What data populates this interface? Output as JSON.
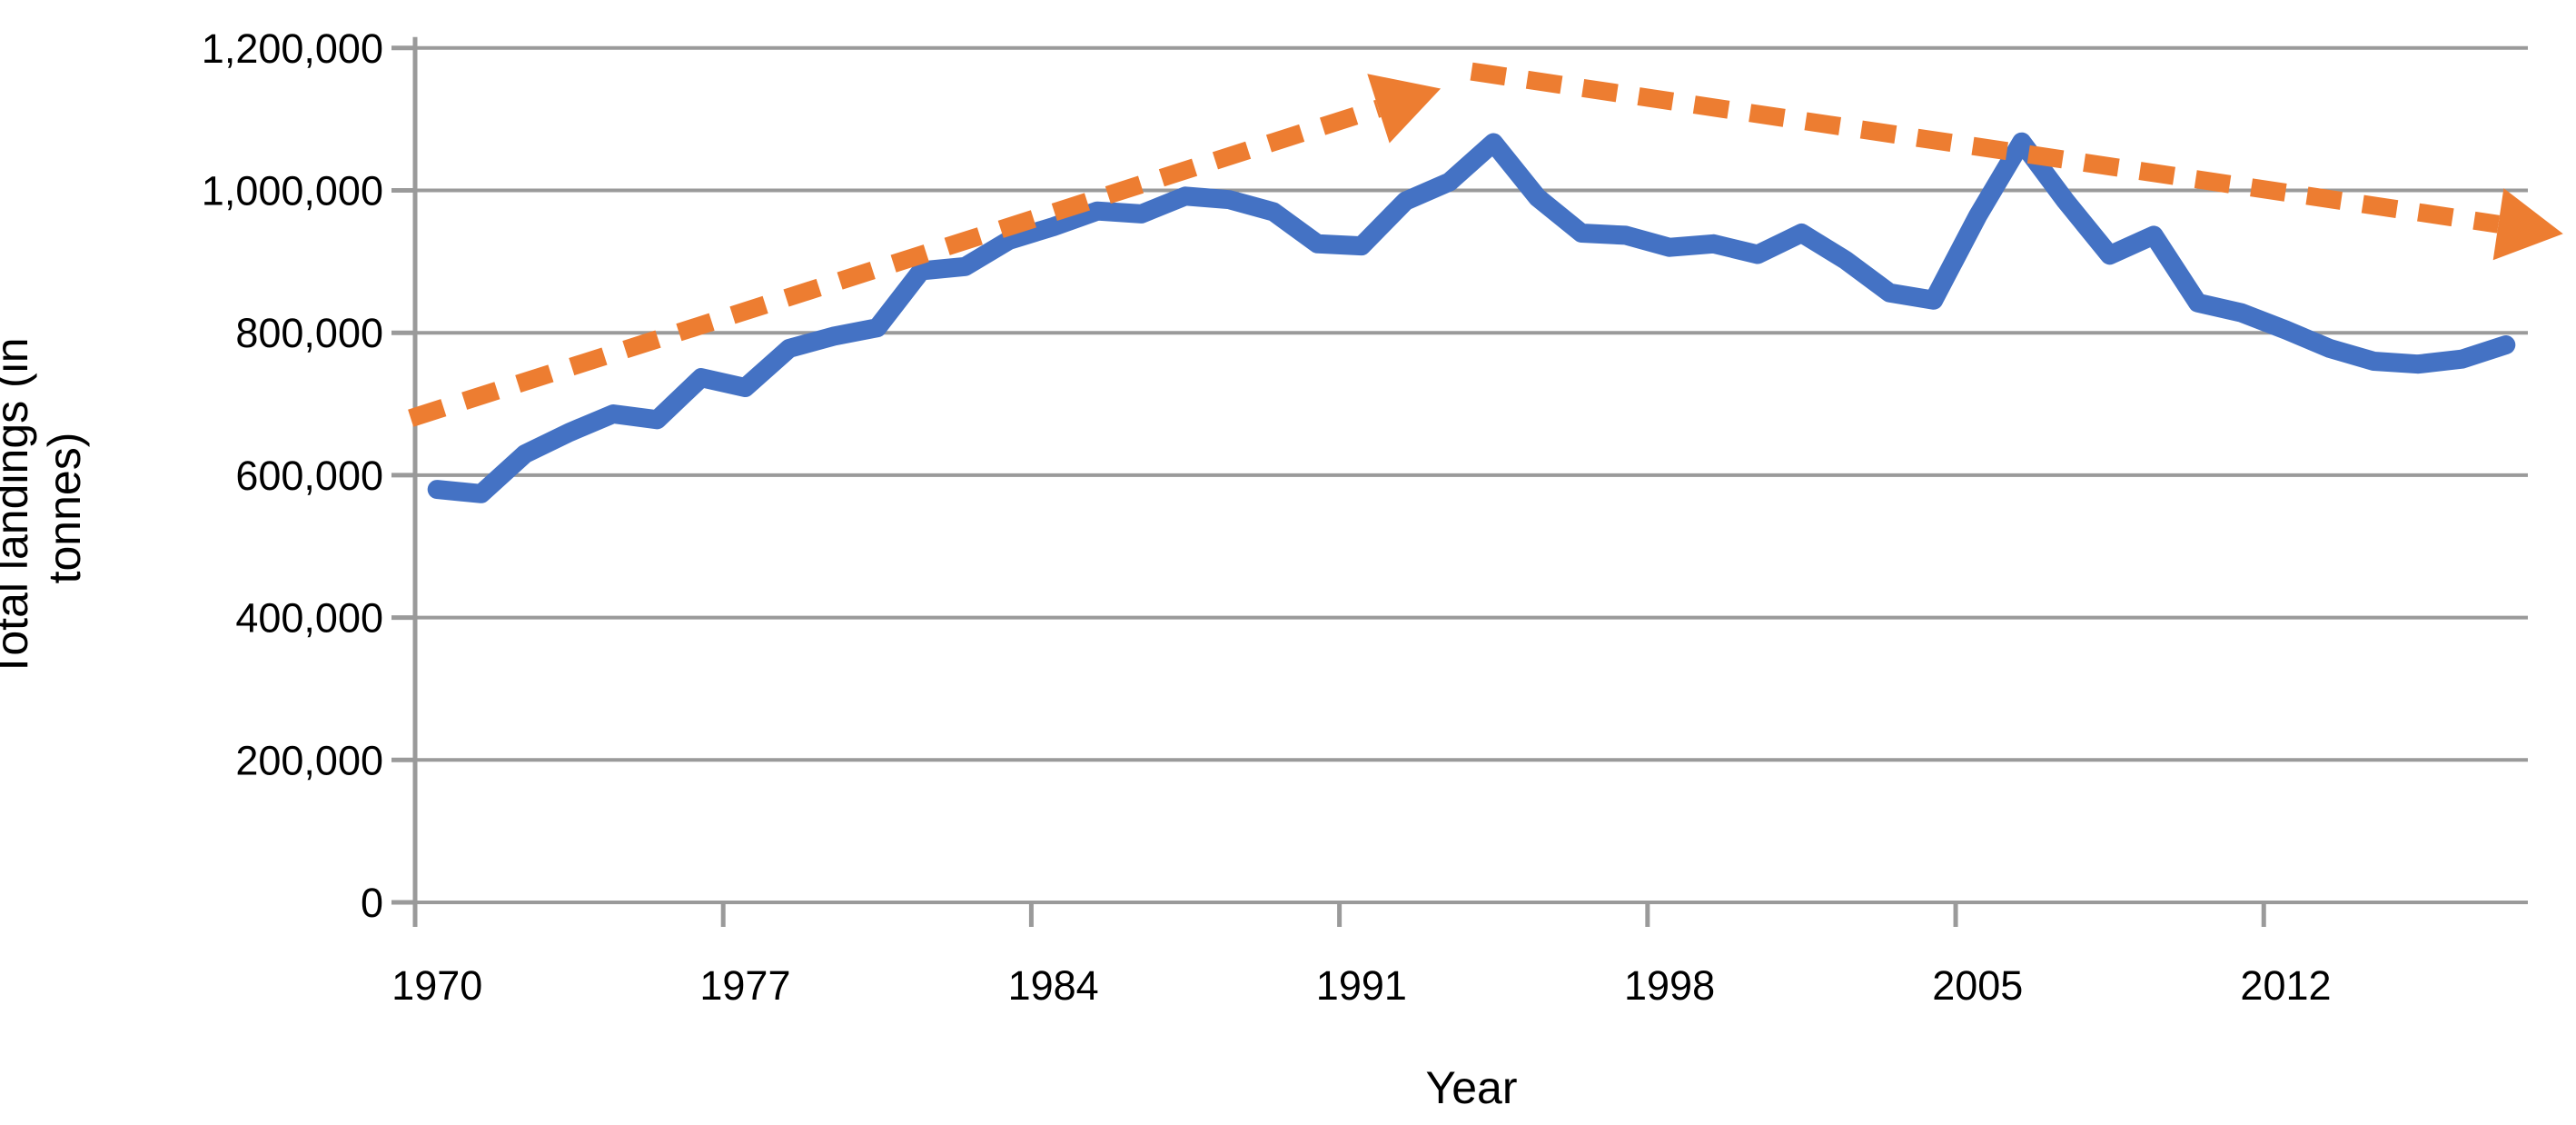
{
  "chart_data": {
    "type": "line",
    "title": "",
    "xlabel": "Year",
    "ylabel": "Total landings (in tonnes)",
    "x": [
      1970,
      1971,
      1972,
      1973,
      1974,
      1975,
      1976,
      1977,
      1978,
      1979,
      1980,
      1981,
      1982,
      1983,
      1984,
      1985,
      1986,
      1987,
      1988,
      1989,
      1990,
      1991,
      1992,
      1993,
      1994,
      1995,
      1996,
      1997,
      1998,
      1999,
      2000,
      2001,
      2002,
      2003,
      2004,
      2005,
      2006,
      2007,
      2008,
      2009,
      2010,
      2011,
      2012,
      2013,
      2014,
      2015,
      2016,
      2017
    ],
    "series": [
      {
        "name": "Total landings",
        "values": [
          580000,
          574000,
          630000,
          660000,
          686000,
          678000,
          737000,
          723000,
          778000,
          795000,
          807000,
          887000,
          893000,
          930000,
          949000,
          971000,
          967000,
          992000,
          987000,
          970000,
          925000,
          922000,
          985000,
          1012000,
          1067000,
          990000,
          940000,
          937000,
          920000,
          925000,
          910000,
          940000,
          902000,
          856000,
          846000,
          964000,
          1068000,
          985000,
          909000,
          937000,
          842000,
          828000,
          804000,
          778000,
          760000,
          756000,
          763000,
          783000
        ]
      }
    ],
    "trend_arrows": [
      {
        "name": "increasing-trend",
        "from_year": 1969.4,
        "from_value": 680000,
        "to_year": 1992.8,
        "to_value": 1143000
      },
      {
        "name": "decreasing-trend",
        "from_year": 1993.5,
        "from_value": 1167000,
        "to_year": 2018.3,
        "to_value": 939000
      }
    ],
    "ylim": [
      0,
      1200000
    ],
    "ytick_interval": 200000,
    "ytick_labels": [
      "0",
      "200,000",
      "400,000",
      "600,000",
      "800,000",
      "1,000,000",
      "1,200,000"
    ],
    "xtick_labels": [
      "1970",
      "1977",
      "1984",
      "1991",
      "1998",
      "2005",
      "2012"
    ],
    "xtick_label_years": [
      1970,
      1977,
      1984,
      1991,
      1998,
      2005,
      2012
    ],
    "grid": "horizontal",
    "legend": "none"
  },
  "colors": {
    "series_line": "#4472C4",
    "trend_line": "#ED7D31",
    "gridline": "#9A9A9A",
    "axis": "#9A9A9A",
    "text": "#000000",
    "background": "#FFFFFF"
  }
}
